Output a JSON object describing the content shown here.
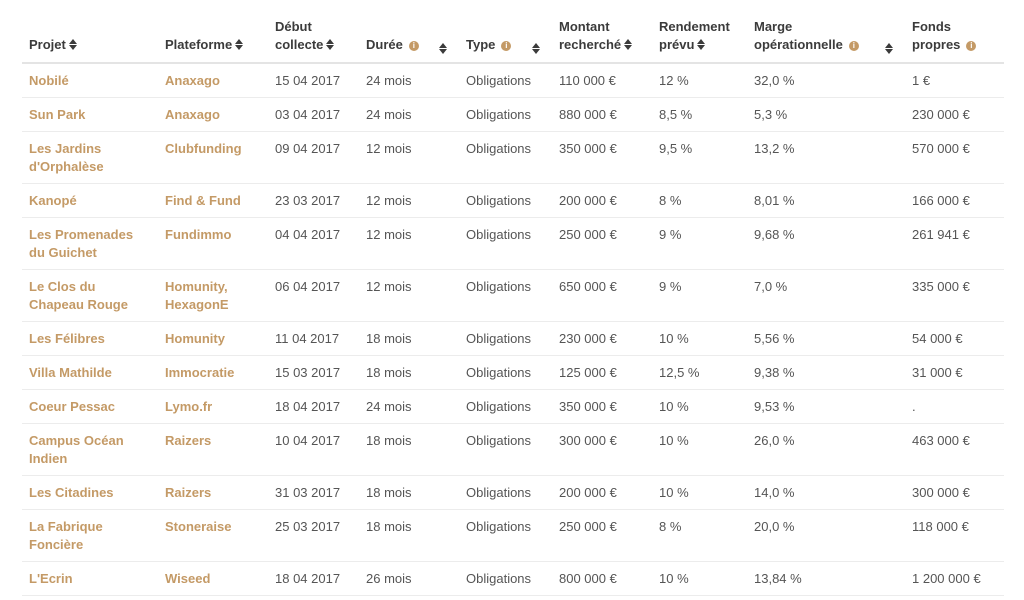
{
  "headers": {
    "projet": "Projet",
    "plateforme": "Plateforme",
    "debut_1": "Début",
    "debut_2": "collecte",
    "duree": "Durée",
    "type": "Type",
    "montant_1": "Montant",
    "montant_2": "recherché",
    "rendement_1": "Rendement",
    "rendement_2": "prévu",
    "marge_1": "Marge",
    "marge_2": "opérationnelle",
    "fonds_1": "Fonds",
    "fonds_2": "propres"
  },
  "icons": {
    "info": "info-icon",
    "sort": "sort-icon"
  },
  "colors": {
    "accent": "#c49a66"
  },
  "rows": [
    {
      "projet": "Nobilé",
      "plateforme": "Anaxago",
      "debut": "15 04 2017",
      "duree": "24 mois",
      "type": "Obligations",
      "montant": "110 000 €",
      "rendement": "12 %",
      "marge": "32,0 %",
      "fonds": "1 €"
    },
    {
      "projet": "Sun Park",
      "plateforme": "Anaxago",
      "debut": "03 04 2017",
      "duree": "24 mois",
      "type": "Obligations",
      "montant": "880 000 €",
      "rendement": "8,5 %",
      "marge": "5,3 %",
      "fonds": "230 000 €"
    },
    {
      "projet": "Les Jardins d'Orphalèse",
      "plateforme": "Clubfunding",
      "debut": "09 04 2017",
      "duree": "12 mois",
      "type": "Obligations",
      "montant": "350 000 €",
      "rendement": "9,5 %",
      "marge": "13,2 %",
      "fonds": "570 000 €"
    },
    {
      "projet": "Kanopé",
      "plateforme": "Find & Fund",
      "debut": "23 03 2017",
      "duree": "12 mois",
      "type": "Obligations",
      "montant": "200 000 €",
      "rendement": "8 %",
      "marge": "8,01 %",
      "fonds": "166 000 €"
    },
    {
      "projet": "Les Promenades du Guichet",
      "plateforme": "Fundimmo",
      "debut": "04 04 2017",
      "duree": "12 mois",
      "type": "Obligations",
      "montant": "250 000 €",
      "rendement": "9 %",
      "marge": "9,68 %",
      "fonds": "261 941 €"
    },
    {
      "projet": "Le Clos du Chapeau Rouge",
      "plateforme": "Homunity, HexagonE",
      "debut": "06 04 2017",
      "duree": "12 mois",
      "type": "Obligations",
      "montant": "650 000 €",
      "rendement": "9 %",
      "marge": "7,0 %",
      "fonds": "335 000 €"
    },
    {
      "projet": "Les Félibres",
      "plateforme": "Homunity",
      "debut": "11 04 2017",
      "duree": "18 mois",
      "type": "Obligations",
      "montant": "230 000 €",
      "rendement": "10 %",
      "marge": "5,56 %",
      "fonds": "54 000 €"
    },
    {
      "projet": "Villa Mathilde",
      "plateforme": "Immocratie",
      "debut": "15 03 2017",
      "duree": "18 mois",
      "type": "Obligations",
      "montant": "125 000 €",
      "rendement": "12,5 %",
      "marge": "9,38 %",
      "fonds": "31 000 €"
    },
    {
      "projet": "Coeur Pessac",
      "plateforme": "Lymo.fr",
      "debut": "18 04 2017",
      "duree": "24 mois",
      "type": "Obligations",
      "montant": "350 000 €",
      "rendement": "10 %",
      "marge": "9,53 %",
      "fonds": "."
    },
    {
      "projet": "Campus Océan Indien",
      "plateforme": "Raizers",
      "debut": "10 04 2017",
      "duree": "18 mois",
      "type": "Obligations",
      "montant": "300 000 €",
      "rendement": "10 %",
      "marge": "26,0 %",
      "fonds": "463 000 €"
    },
    {
      "projet": "Les Citadines",
      "plateforme": "Raizers",
      "debut": "31 03 2017",
      "duree": "18 mois",
      "type": "Obligations",
      "montant": "200 000 €",
      "rendement": "10 %",
      "marge": "14,0 %",
      "fonds": "300 000 €"
    },
    {
      "projet": "La Fabrique Foncière",
      "plateforme": "Stoneraise",
      "debut": "25 03 2017",
      "duree": "18 mois",
      "type": "Obligations",
      "montant": "250 000 €",
      "rendement": "8 %",
      "marge": "20,0 %",
      "fonds": "118 000 €"
    },
    {
      "projet": "L'Ecrin",
      "plateforme": "Wiseed",
      "debut": "18 04 2017",
      "duree": "26 mois",
      "type": "Obligations",
      "montant": "800 000 €",
      "rendement": "10 %",
      "marge": "13,84 %",
      "fonds": "1 200 000 €"
    }
  ]
}
